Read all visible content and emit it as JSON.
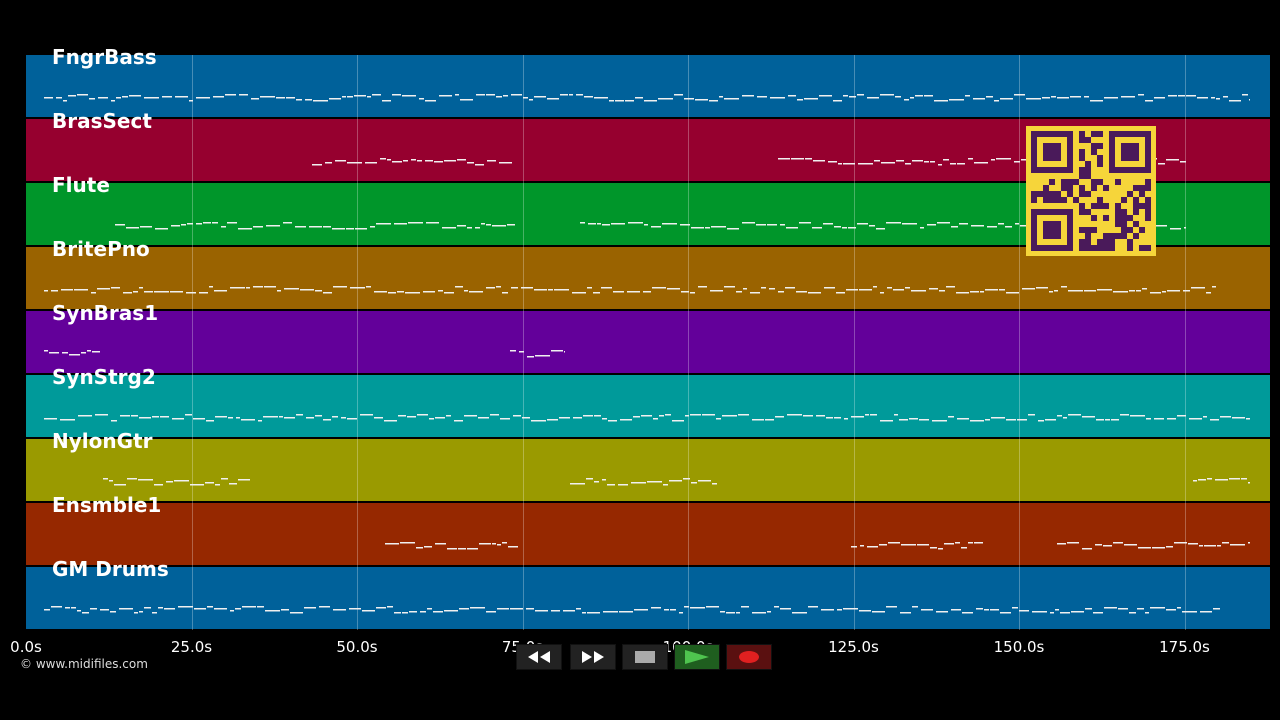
{
  "tracks": [
    {
      "name": "FngrBass",
      "color": "#00619a"
    },
    {
      "name": "BrasSect",
      "color": "#96002f"
    },
    {
      "name": "Flute",
      "color": "#00962a"
    },
    {
      "name": "BritePno",
      "color": "#9a6300"
    },
    {
      "name": "SynBras1",
      "color": "#63009a"
    },
    {
      "name": "SynStrg2",
      "color": "#009a9a"
    },
    {
      "name": "NylonGtr",
      "color": "#9a9a00"
    },
    {
      "name": "Ensmble1",
      "color": "#962800"
    },
    {
      "name": "GM Drums",
      "color": "#00619a"
    }
  ],
  "timeline": {
    "ticks": [
      "0.0s",
      "25.0s",
      "50.0s",
      "75.0s",
      "100.0s",
      "125.0s",
      "150.0s",
      "175.0s"
    ]
  },
  "copyright": "© www.midifiles.com",
  "transport": {
    "rewind_icon": "rewind-icon",
    "fastforward_icon": "fast-forward-icon",
    "stop_icon": "stop-icon",
    "play_icon": "play-icon",
    "record_icon": "record-icon",
    "play_color": "#2e9a2e",
    "record_color": "#e02020"
  },
  "qr_icon": "qr-code-icon"
}
